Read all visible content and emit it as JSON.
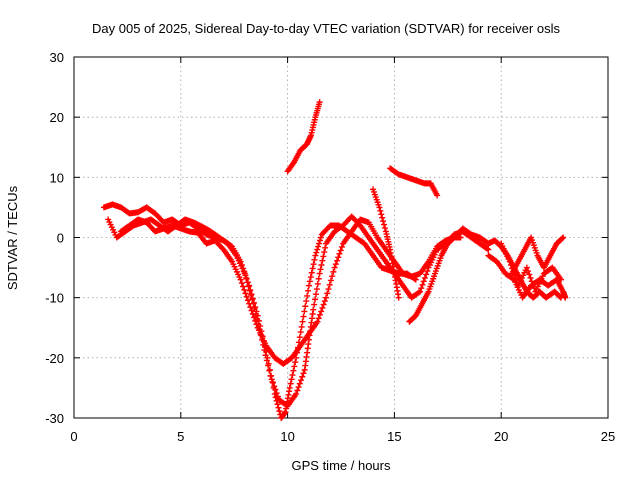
{
  "chart_data": {
    "type": "scatter",
    "title": "Day 005 of 2025, Sidereal Day-to-day VTEC variation (SDTVAR) for receiver osls",
    "xlabel": "GPS time / hours",
    "ylabel": "SDTVAR / TECUs",
    "xlim": [
      0,
      25
    ],
    "ylim": [
      -30,
      30
    ],
    "xticks": [
      0,
      5,
      10,
      15,
      20,
      25
    ],
    "yticks": [
      -30,
      -20,
      -10,
      0,
      10,
      20,
      30
    ],
    "grid": true,
    "legend": "none",
    "marker": "+",
    "series": [
      {
        "color": "#ff0000",
        "tracks": [
          [
            [
              1.4,
              5
            ],
            [
              1.8,
              5.5
            ],
            [
              2.2,
              5
            ],
            [
              2.6,
              4
            ],
            [
              3.0,
              4.2
            ],
            [
              3.4,
              5
            ],
            [
              3.8,
              4
            ],
            [
              4.2,
              2.5
            ],
            [
              4.6,
              3
            ],
            [
              5.0,
              2
            ],
            [
              5.4,
              2.5
            ],
            [
              5.8,
              1.5
            ],
            [
              6.2,
              0.5
            ],
            [
              6.6,
              0
            ],
            [
              7.0,
              -0.5
            ],
            [
              7.4,
              -1.5
            ],
            [
              7.8,
              -4
            ],
            [
              8.2,
              -8
            ],
            [
              8.6,
              -13
            ],
            [
              9.0,
              -19
            ],
            [
              9.4,
              -26
            ],
            [
              9.7,
              -30
            ],
            [
              9.9,
              -29
            ],
            [
              10.1,
              -25
            ],
            [
              10.4,
              -20
            ],
            [
              10.7,
              -14
            ],
            [
              11.0,
              -8
            ],
            [
              11.3,
              -3
            ],
            [
              11.6,
              0.5
            ],
            [
              12.0,
              2
            ],
            [
              12.4,
              2
            ],
            [
              12.8,
              1
            ],
            [
              13.2,
              0
            ],
            [
              13.6,
              -1
            ],
            [
              14.0,
              -3
            ],
            [
              14.4,
              -5
            ],
            [
              14.8,
              -5.5
            ],
            [
              15.2,
              -6
            ],
            [
              15.6,
              -6
            ],
            [
              16.0,
              -7
            ]
          ],
          [
            [
              1.6,
              3
            ],
            [
              2.0,
              0
            ],
            [
              2.4,
              1
            ],
            [
              2.8,
              2
            ],
            [
              3.2,
              2.5
            ],
            [
              3.6,
              3
            ],
            [
              4.0,
              2
            ],
            [
              4.4,
              1
            ],
            [
              4.8,
              2
            ],
            [
              5.2,
              3
            ],
            [
              5.6,
              2.5
            ],
            [
              6.0,
              1.8
            ],
            [
              6.4,
              1
            ],
            [
              6.8,
              0
            ],
            [
              7.2,
              -1
            ],
            [
              7.6,
              -3
            ],
            [
              8.0,
              -6
            ],
            [
              8.4,
              -11
            ],
            [
              8.8,
              -17
            ],
            [
              9.2,
              -23
            ],
            [
              9.6,
              -27
            ],
            [
              10.0,
              -28
            ],
            [
              10.4,
              -26
            ],
            [
              10.8,
              -22
            ],
            [
              11.0,
              -17
            ],
            [
              11.2,
              -12
            ],
            [
              11.5,
              -6
            ],
            [
              11.8,
              -1
            ],
            [
              12.2,
              1
            ],
            [
              12.6,
              2
            ],
            [
              13.0,
              3.5
            ],
            [
              13.4,
              2
            ],
            [
              13.8,
              0
            ],
            [
              14.2,
              -2
            ],
            [
              14.6,
              -4
            ],
            [
              15.0,
              -6
            ],
            [
              15.4,
              -8
            ],
            [
              15.8,
              -10
            ],
            [
              16.2,
              -9
            ],
            [
              16.6,
              -5
            ],
            [
              17.0,
              -2
            ],
            [
              17.4,
              -1
            ],
            [
              17.8,
              0.5
            ],
            [
              18.2,
              1
            ],
            [
              18.6,
              0
            ],
            [
              19.0,
              -1
            ],
            [
              19.4,
              -2
            ]
          ],
          [
            [
              2.2,
              1
            ],
            [
              2.6,
              2
            ],
            [
              3.0,
              3
            ],
            [
              3.4,
              2.5
            ],
            [
              3.8,
              1
            ],
            [
              4.2,
              1.5
            ],
            [
              4.6,
              2
            ],
            [
              5.0,
              1.5
            ],
            [
              5.4,
              1
            ],
            [
              5.8,
              0.8
            ],
            [
              6.2,
              -1
            ],
            [
              6.6,
              -0.5
            ],
            [
              7.0,
              -2
            ],
            [
              7.4,
              -4
            ],
            [
              7.8,
              -7
            ],
            [
              8.2,
              -11
            ],
            [
              8.6,
              -15
            ],
            [
              9.0,
              -18
            ],
            [
              9.4,
              -20
            ],
            [
              9.8,
              -21
            ],
            [
              10.2,
              -20
            ],
            [
              10.6,
              -18
            ],
            [
              11.0,
              -16
            ],
            [
              11.4,
              -14
            ],
            [
              11.8,
              -10
            ],
            [
              12.2,
              -5
            ],
            [
              12.6,
              -1
            ],
            [
              13.0,
              1
            ],
            [
              13.4,
              3
            ],
            [
              13.8,
              2.5
            ],
            [
              14.2,
              0
            ],
            [
              14.6,
              -2
            ],
            [
              15.0,
              -4
            ],
            [
              15.4,
              -6
            ],
            [
              15.8,
              -6.5
            ],
            [
              16.2,
              -6
            ],
            [
              16.6,
              -4
            ],
            [
              17.0,
              -1.5
            ],
            [
              17.4,
              -0.5
            ],
            [
              17.8,
              0
            ],
            [
              18.2,
              1.5
            ],
            [
              18.6,
              0.5
            ],
            [
              19.0,
              0
            ],
            [
              19.4,
              -1
            ]
          ],
          [
            [
              10.0,
              11
            ],
            [
              10.3,
              12.5
            ],
            [
              10.6,
              14.5
            ],
            [
              10.9,
              15.5
            ],
            [
              11.1,
              17
            ],
            [
              11.3,
              20
            ],
            [
              11.5,
              22.5
            ]
          ],
          [
            [
              14.8,
              11.5
            ],
            [
              15.2,
              10.5
            ],
            [
              15.6,
              10
            ],
            [
              16.0,
              9.5
            ],
            [
              16.4,
              9
            ],
            [
              16.7,
              9
            ],
            [
              17.0,
              7
            ]
          ],
          [
            [
              14.0,
              8
            ],
            [
              14.3,
              5
            ],
            [
              14.6,
              1
            ],
            [
              14.8,
              -2
            ],
            [
              15.0,
              -6
            ],
            [
              15.2,
              -10
            ]
          ],
          [
            [
              15.7,
              -14
            ],
            [
              16.0,
              -13
            ],
            [
              16.3,
              -11
            ],
            [
              16.6,
              -9
            ],
            [
              16.9,
              -6
            ],
            [
              17.2,
              -3
            ],
            [
              17.5,
              -1
            ],
            [
              17.8,
              0
            ],
            [
              18.1,
              0
            ]
          ],
          [
            [
              19.4,
              -3
            ],
            [
              19.8,
              -4
            ],
            [
              20.2,
              -6
            ],
            [
              20.6,
              -7
            ],
            [
              21.0,
              -10
            ],
            [
              21.4,
              -8
            ],
            [
              21.8,
              -7
            ],
            [
              22.2,
              -8
            ],
            [
              22.6,
              -7
            ],
            [
              22.9,
              -9
            ],
            [
              23.0,
              -10
            ]
          ],
          [
            [
              20.0,
              -1
            ],
            [
              20.4,
              -4
            ],
            [
              20.8,
              -8
            ],
            [
              21.2,
              -5
            ],
            [
              21.6,
              -9
            ],
            [
              22.0,
              -6
            ],
            [
              22.4,
              -5
            ],
            [
              22.8,
              -7
            ]
          ],
          [
            [
              20.5,
              -6
            ],
            [
              20.8,
              -4
            ],
            [
              21.1,
              -2
            ],
            [
              21.4,
              0
            ],
            [
              21.7,
              -3
            ],
            [
              22.0,
              -5
            ],
            [
              22.3,
              -3
            ],
            [
              22.6,
              -1
            ],
            [
              22.9,
              0
            ]
          ],
          [
            [
              19.4,
              -1
            ],
            [
              19.7,
              -0.5
            ],
            [
              20.0,
              -1.5
            ],
            [
              20.3,
              -3
            ],
            [
              20.6,
              -5
            ],
            [
              20.9,
              -7
            ],
            [
              21.2,
              -9
            ],
            [
              21.5,
              -10
            ],
            [
              21.8,
              -9
            ],
            [
              22.1,
              -10
            ],
            [
              22.5,
              -9
            ],
            [
              22.8,
              -10
            ]
          ]
        ]
      }
    ]
  }
}
